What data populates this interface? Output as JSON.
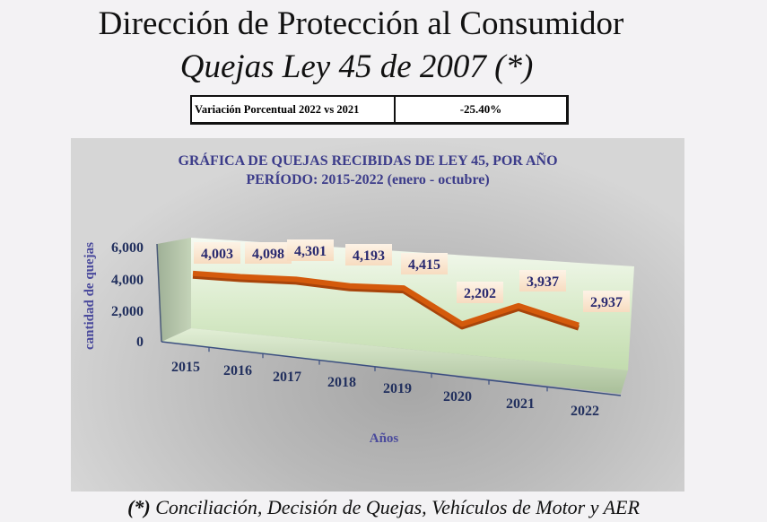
{
  "header": {
    "title": "Dirección de Protección al Consumidor",
    "subtitle": "Quejas Ley 45 de 2007 (*)"
  },
  "variation_table": {
    "label": "Variación Porcentual 2022 vs 2021",
    "value": "-25.40%"
  },
  "footnote": {
    "marker": "(*)",
    "text": " Conciliación, Decisión de Quejas, Vehículos de Motor y AER"
  },
  "colors": {
    "line": "#d45a0c",
    "title": "#3c3c8a",
    "tick": "#22305e"
  },
  "chart_data": {
    "type": "line",
    "title": "GRÁFICA DE QUEJAS RECIBIDAS DE LEY 45,  POR AÑO",
    "subtitle": "PERÍODO: 2015-2022 (enero - octubre)",
    "xlabel": "Años",
    "ylabel": "cantidad de quejas",
    "categories": [
      "2015",
      "2016",
      "2017",
      "2018",
      "2019",
      "2020",
      "2021",
      "2022"
    ],
    "values": [
      4003,
      4098,
      4301,
      4193,
      4415,
      2202,
      3937,
      2937
    ],
    "data_labels": [
      "4,003",
      "4,098",
      "4,301",
      "4,193",
      "4,415",
      "2,202",
      "3,937",
      "2,937"
    ],
    "yticks": [
      "0",
      "2,000",
      "4,000",
      "6,000"
    ],
    "ytick_values": [
      0,
      2000,
      4000,
      6000
    ],
    "ylim": [
      0,
      6000
    ],
    "style": "3d-line"
  }
}
